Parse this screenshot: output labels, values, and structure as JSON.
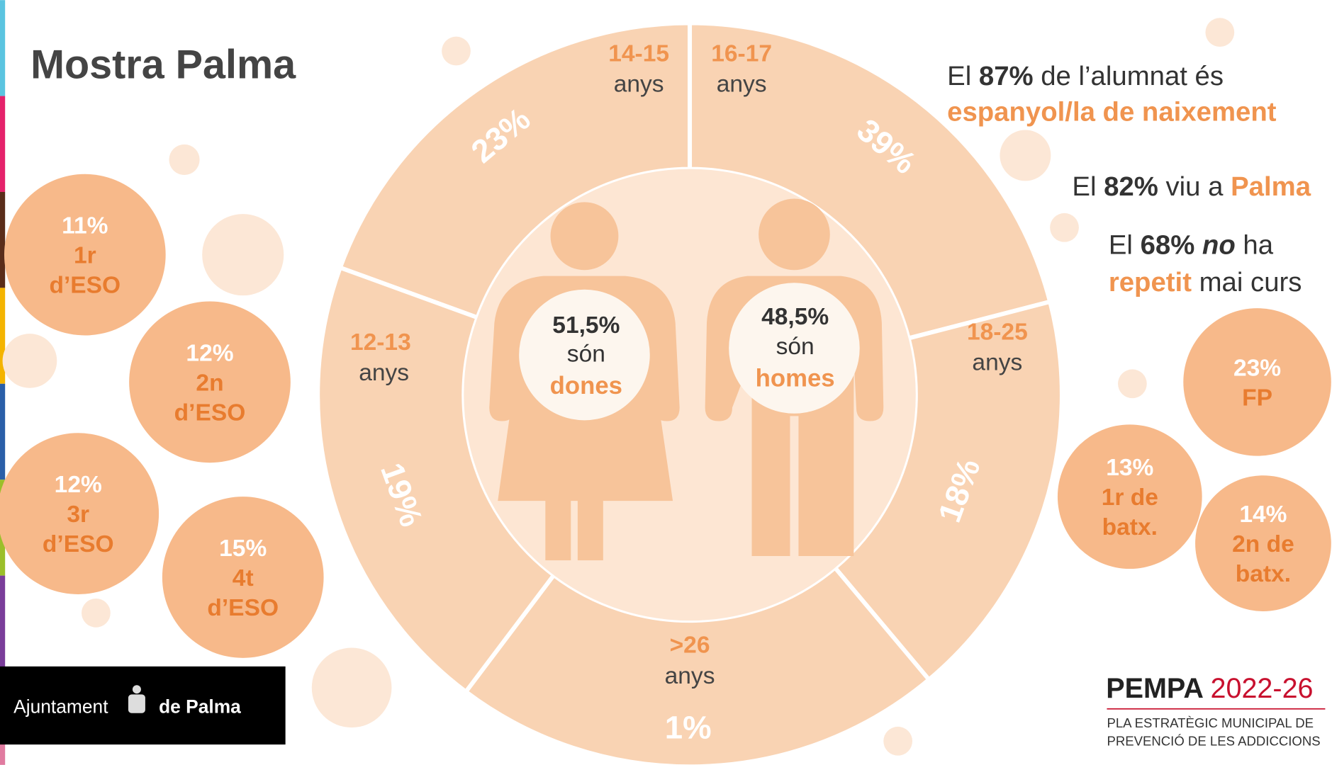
{
  "title": "Mostra Palma",
  "age_groups": [
    {
      "age": "14-15",
      "unit": "anys",
      "percent": "23%"
    },
    {
      "age": "16-17",
      "unit": "anys",
      "percent": "39%"
    },
    {
      "age": "18-25",
      "unit": "anys",
      "percent": "18%"
    },
    {
      "age": ">26",
      "unit": "anys",
      "percent": "1%"
    },
    {
      "age": "12-13",
      "unit": "anys",
      "percent": "19%"
    }
  ],
  "gender": [
    {
      "percent": "51,5%",
      "verb": "són",
      "label": "dones"
    },
    {
      "percent": "48,5%",
      "verb": "són",
      "label": "homes"
    }
  ],
  "facts": [
    [
      "El ",
      "87%",
      " de l’alumnat és",
      "espanyol/la de naixement"
    ],
    [
      "El ",
      "82%",
      " viu a ",
      "Palma"
    ],
    [
      "El ",
      "68%",
      " no",
      " ha",
      "repetit",
      " mai curs"
    ]
  ],
  "courses": [
    {
      "percent": "11%",
      "label": [
        "1r",
        "d’ESO"
      ]
    },
    {
      "percent": "12%",
      "label": [
        "2n",
        "d’ESO"
      ]
    },
    {
      "percent": "12%",
      "label": [
        "3r",
        "d’ESO"
      ]
    },
    {
      "percent": "15%",
      "label": [
        "4t",
        "d’ESO"
      ]
    },
    {
      "percent": "23%",
      "label": [
        "FP"
      ]
    },
    {
      "percent": "13%",
      "label": [
        "1r de",
        "batx."
      ]
    },
    {
      "percent": "14%",
      "label": [
        "2n de",
        "batx."
      ]
    }
  ],
  "logos": {
    "ajuntament": [
      "Ajuntament",
      "de Palma"
    ],
    "pempa": {
      "name": "PEMPA",
      "years": "2022-26",
      "subtitle": [
        "PLA ESTRATÈGIC MUNICIPAL DE",
        "PREVENCIÓ DE LES ADDICCIONS"
      ]
    }
  }
}
